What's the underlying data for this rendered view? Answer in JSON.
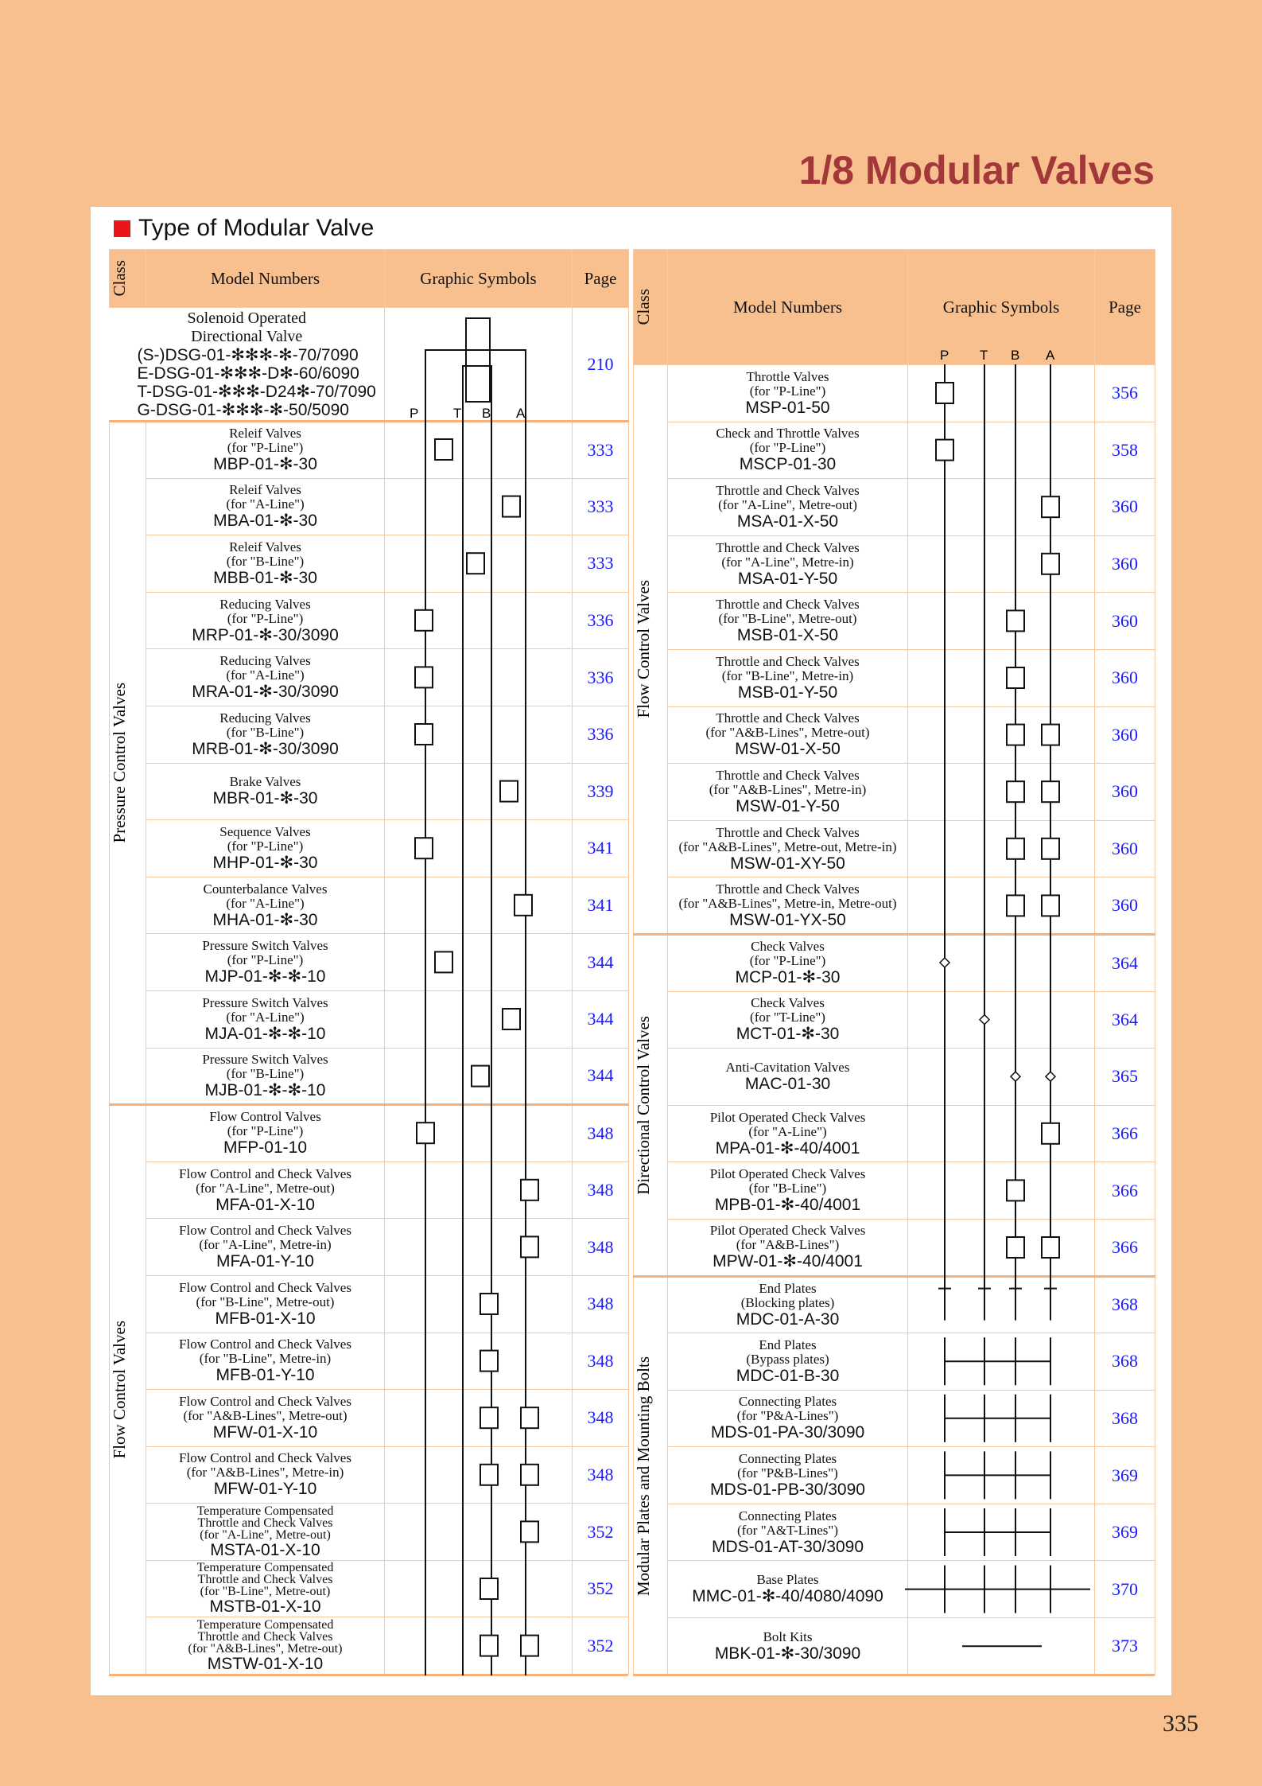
{
  "title": "1/8 Modular Valves",
  "heading": "Type of Modular Valve",
  "page_number": "335",
  "headers": {
    "class": "Class",
    "model": "Model Numbers",
    "symbols": "Graphic Symbols",
    "page": "Page"
  },
  "ports": [
    "P",
    "T",
    "B",
    "A"
  ],
  "left": {
    "top_row": {
      "desc": [
        "Solenoid Operated",
        "Directional Valve"
      ],
      "models": [
        "(S-)DSG-01-✻✻✻-✻-70/7090",
        "E-DSG-01-✻✻✻-D✻-60/6090",
        "T-DSG-01-✻✻✻-D24✻-70/7090",
        "G-DSG-01-✻✻✻-✻-50/5090"
      ],
      "page": "210"
    },
    "sections": [
      {
        "class": "Pressure Control Valves",
        "rows": [
          {
            "desc": [
              "Releif Valves",
              "(for \"P-Line\")"
            ],
            "model": "MBP-01-✻-30",
            "page": "333"
          },
          {
            "desc": [
              "Releif Valves",
              "(for \"A-Line\")"
            ],
            "model": "MBA-01-✻-30",
            "page": "333"
          },
          {
            "desc": [
              "Releif Valves",
              "(for \"B-Line\")"
            ],
            "model": "MBB-01-✻-30",
            "page": "333"
          },
          {
            "desc": [
              "Reducing Valves",
              "(for \"P-Line\")"
            ],
            "model": "MRP-01-✻-30/3090",
            "page": "336"
          },
          {
            "desc": [
              "Reducing Valves",
              "(for \"A-Line\")"
            ],
            "model": "MRA-01-✻-30/3090",
            "page": "336"
          },
          {
            "desc": [
              "Reducing Valves",
              "(for \"B-Line\")"
            ],
            "model": "MRB-01-✻-30/3090",
            "page": "336"
          },
          {
            "desc": [
              "Brake Valves"
            ],
            "model": "MBR-01-✻-30",
            "page": "339"
          },
          {
            "desc": [
              "Sequence Valves",
              "(for \"P-Line\")"
            ],
            "model": "MHP-01-✻-30",
            "page": "341"
          },
          {
            "desc": [
              "Counterbalance Valves",
              "(for \"A-Line\")"
            ],
            "model": "MHA-01-✻-30",
            "page": "341"
          },
          {
            "desc": [
              "Pressure Switch Valves",
              "(for \"P-Line\")"
            ],
            "model": "MJP-01-✻-✻-10",
            "page": "344"
          },
          {
            "desc": [
              "Pressure Switch Valves",
              "(for \"A-Line\")"
            ],
            "model": "MJA-01-✻-✻-10",
            "page": "344"
          },
          {
            "desc": [
              "Pressure Switch Valves",
              "(for \"B-Line\")"
            ],
            "model": "MJB-01-✻-✻-10",
            "page": "344"
          }
        ]
      },
      {
        "class": "Flow Control Valves",
        "rows": [
          {
            "desc": [
              "Flow Control Valves",
              "(for \"P-Line\")"
            ],
            "model": "MFP-01-10",
            "page": "348"
          },
          {
            "desc": [
              "Flow Control and Check Valves",
              "(for \"A-Line\", Metre-out)"
            ],
            "model": "MFA-01-X-10",
            "page": "348"
          },
          {
            "desc": [
              "Flow Control and Check Valves",
              "(for \"A-Line\", Metre-in)"
            ],
            "model": "MFA-01-Y-10",
            "page": "348"
          },
          {
            "desc": [
              "Flow Control and Check Valves",
              "(for \"B-Line\", Metre-out)"
            ],
            "model": "MFB-01-X-10",
            "page": "348"
          },
          {
            "desc": [
              "Flow Control and Check Valves",
              "(for \"B-Line\", Metre-in)"
            ],
            "model": "MFB-01-Y-10",
            "page": "348"
          },
          {
            "desc": [
              "Flow Control and Check Valves",
              "(for \"A&B-Lines\", Metre-out)"
            ],
            "model": "MFW-01-X-10",
            "page": "348"
          },
          {
            "desc": [
              "Flow Control and Check Valves",
              "(for \"A&B-Lines\", Metre-in)"
            ],
            "model": "MFW-01-Y-10",
            "page": "348"
          },
          {
            "desc": [
              "Temperature Compensated",
              "Throttle and Check Valves",
              "(for \"A-Line\", Metre-out)"
            ],
            "model": "MSTA-01-X-10",
            "page": "352"
          },
          {
            "desc": [
              "Temperature Compensated",
              "Throttle and Check Valves",
              "(for \"B-Line\", Metre-out)"
            ],
            "model": "MSTB-01-X-10",
            "page": "352"
          },
          {
            "desc": [
              "Temperature Compensated",
              "Throttle and Check Valves",
              "(for \"A&B-Lines\", Metre-out)"
            ],
            "model": "MSTW-01-X-10",
            "page": "352"
          }
        ]
      }
    ]
  },
  "right": {
    "sections": [
      {
        "class": "Flow Control Valves",
        "rows": [
          {
            "desc": [
              "Throttle Valves",
              "(for \"P-Line\")"
            ],
            "model": "MSP-01-50",
            "page": "356"
          },
          {
            "desc": [
              "Check and Throttle Valves",
              "(for \"P-Line\")"
            ],
            "model": "MSCP-01-30",
            "page": "358"
          },
          {
            "desc": [
              "Throttle and Check Valves",
              "(for \"A-Line\", Metre-out)"
            ],
            "model": "MSA-01-X-50",
            "page": "360"
          },
          {
            "desc": [
              "Throttle and Check Valves",
              "(for \"A-Line\", Metre-in)"
            ],
            "model": "MSA-01-Y-50",
            "page": "360"
          },
          {
            "desc": [
              "Throttle and Check Valves",
              "(for \"B-Line\", Metre-out)"
            ],
            "model": "MSB-01-X-50",
            "page": "360"
          },
          {
            "desc": [
              "Throttle and Check Valves",
              "(for \"B-Line\", Metre-in)"
            ],
            "model": "MSB-01-Y-50",
            "page": "360"
          },
          {
            "desc": [
              "Throttle and Check Valves",
              "(for \"A&B-Lines\", Metre-out)"
            ],
            "model": "MSW-01-X-50",
            "page": "360"
          },
          {
            "desc": [
              "Throttle and Check Valves",
              "(for \"A&B-Lines\", Metre-in)"
            ],
            "model": "MSW-01-Y-50",
            "page": "360"
          },
          {
            "desc": [
              "Throttle and Check Valves",
              "(for \"A&B-Lines\", Metre-out, Metre-in)"
            ],
            "model": "MSW-01-XY-50",
            "page": "360"
          },
          {
            "desc": [
              "Throttle and Check Valves",
              "(for \"A&B-Lines\", Metre-in, Metre-out)"
            ],
            "model": "MSW-01-YX-50",
            "page": "360"
          }
        ]
      },
      {
        "class": "Directional Control Valves",
        "rows": [
          {
            "desc": [
              "Check Valves",
              "(for \"P-Line\")"
            ],
            "model": "MCP-01-✻-30",
            "page": "364"
          },
          {
            "desc": [
              "Check Valves",
              "(for \"T-Line\")"
            ],
            "model": "MCT-01-✻-30",
            "page": "364"
          },
          {
            "desc": [
              "Anti-Cavitation Valves"
            ],
            "model": "MAC-01-30",
            "page": "365"
          },
          {
            "desc": [
              "Pilot Operated Check Valves",
              "(for \"A-Line\")"
            ],
            "model": "MPA-01-✻-40/4001",
            "page": "366"
          },
          {
            "desc": [
              "Pilot Operated Check Valves",
              "(for \"B-Line\")"
            ],
            "model": "MPB-01-✻-40/4001",
            "page": "366"
          },
          {
            "desc": [
              "Pilot Operated Check Valves",
              "(for \"A&B-Lines\")"
            ],
            "model": "MPW-01-✻-40/4001",
            "page": "366"
          }
        ]
      },
      {
        "class": "Modular Plates and Mounting Bolts",
        "rows": [
          {
            "desc": [
              "End Plates",
              "(Blocking plates)"
            ],
            "model": "MDC-01-A-30",
            "page": "368"
          },
          {
            "desc": [
              "End Plates",
              "(Bypass plates)"
            ],
            "model": "MDC-01-B-30",
            "page": "368"
          },
          {
            "desc": [
              "Connecting Plates",
              "(for \"P&A-Lines\")"
            ],
            "model": "MDS-01-PA-30/3090",
            "page": "368"
          },
          {
            "desc": [
              "Connecting Plates",
              "(for \"P&B-Lines\")"
            ],
            "model": "MDS-01-PB-30/3090",
            "page": "369"
          },
          {
            "desc": [
              "Connecting Plates",
              "(for \"A&T-Lines\")"
            ],
            "model": "MDS-01-AT-30/3090",
            "page": "369"
          },
          {
            "desc": [
              "Base Plates"
            ],
            "model": "MMC-01-✻-40/4080/4090",
            "page": "370"
          },
          {
            "desc": [
              "Bolt Kits"
            ],
            "model": "MBK-01-✻-30/3090",
            "page": "373"
          }
        ]
      }
    ]
  },
  "colors": {
    "background": "#f9c08f",
    "title": "#a3383a",
    "page_link": "#1a1aff",
    "bullet": "#e8161b"
  }
}
